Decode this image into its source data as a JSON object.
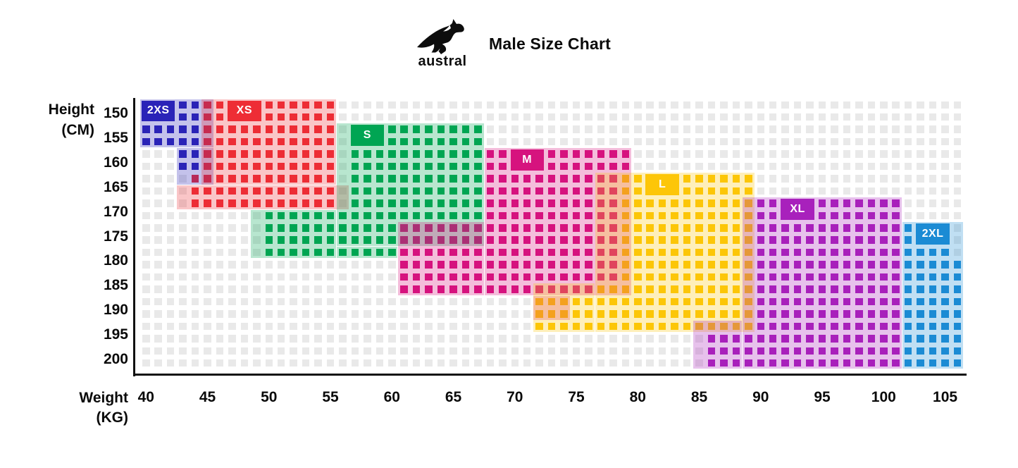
{
  "header": {
    "title": "Male Size Chart",
    "brand": "austral",
    "logo_icon": "kangaroo-icon"
  },
  "y_axis": {
    "title_line1": "Height",
    "title_line2": "(CM)",
    "ticks": [
      "150",
      "155",
      "160",
      "165",
      "170",
      "175",
      "180",
      "185",
      "190",
      "195",
      "200"
    ]
  },
  "x_axis": {
    "title_line1": "Weight",
    "title_line2": "(KG)",
    "ticks": [
      "40",
      "45",
      "50",
      "55",
      "60",
      "65",
      "70",
      "75",
      "80",
      "85",
      "90",
      "95",
      "100",
      "105"
    ]
  },
  "chart_data": {
    "type": "heatmap",
    "title": "Male Size Chart",
    "xlabel": "Weight (KG)",
    "ylabel": "Height (CM)",
    "x_range": [
      40,
      105
    ],
    "x_tick_step": 5,
    "kg_per_column": 1,
    "columns": 67,
    "y_range": [
      150,
      200
    ],
    "y_tick_step": 5,
    "cm_per_row": 2.5,
    "rows": 22,
    "grid_on": true,
    "grid_cell_color": "#e9e9e9",
    "legend_position": "inline-labels",
    "sizes": [
      {
        "label": "2XS",
        "color": "#2a23b8",
        "weight_kg_range": [
          40,
          44
        ],
        "height_cm_range": [
          150,
          162.5
        ],
        "solid_rects": [
          [
            1,
            4,
            1,
            5
          ],
          [
            5,
            6,
            4,
            5
          ]
        ],
        "overlay_rects": [
          [
            1,
            4,
            1,
            6
          ],
          [
            5,
            7,
            4,
            6
          ]
        ],
        "label_box": {
          "row": 1,
          "col": 1
        }
      },
      {
        "label": "XS",
        "color": "#ee2d35",
        "weight_kg_range": [
          44,
          55
        ],
        "height_cm_range": [
          150,
          170
        ],
        "solid_rects": [
          [
            1,
            6,
            6,
            16
          ],
          [
            7,
            9,
            5,
            16
          ]
        ],
        "overlay_rects": [
          [
            1,
            7,
            6,
            16
          ],
          [
            8,
            9,
            4,
            17
          ]
        ],
        "label_box": {
          "row": 1,
          "col": 8
        }
      },
      {
        "label": "S",
        "color": "#00a553",
        "weight_kg_range": [
          50,
          67
        ],
        "height_cm_range": [
          155,
          180
        ],
        "solid_rects": [
          [
            3,
            9,
            18,
            28
          ],
          [
            10,
            10,
            11,
            28
          ],
          [
            11,
            13,
            11,
            21
          ]
        ],
        "overlay_rects": [
          [
            3,
            12,
            17,
            28
          ],
          [
            10,
            13,
            10,
            16
          ],
          [
            13,
            13,
            17,
            21
          ]
        ],
        "label_box": {
          "row": 3,
          "col": 18
        }
      },
      {
        "label": "M",
        "color": "#d6137e",
        "weight_kg_range": [
          61,
          79
        ],
        "height_cm_range": [
          160,
          187.5
        ],
        "solid_rects": [
          [
            5,
            6,
            29,
            40
          ],
          [
            7,
            10,
            29,
            39
          ],
          [
            11,
            15,
            22,
            39
          ],
          [
            16,
            16,
            22,
            37
          ]
        ],
        "overlay_rects": [
          [
            5,
            16,
            29,
            40
          ],
          [
            11,
            16,
            22,
            28
          ],
          [
            17,
            18,
            33,
            35
          ]
        ],
        "label_box": {
          "row": 5,
          "col": 31
        }
      },
      {
        "label": "L",
        "color": "#fdc608",
        "weight_kg_range": [
          72,
          89
        ],
        "height_cm_range": [
          165,
          195
        ],
        "solid_rects": [
          [
            7,
            15,
            40,
            50
          ],
          [
            16,
            16,
            38,
            50
          ],
          [
            17,
            19,
            33,
            50
          ]
        ],
        "overlay_rects": [
          [
            7,
            19,
            38,
            50
          ],
          [
            16,
            19,
            33,
            37
          ]
        ],
        "label_box": {
          "row": 7,
          "col": 42
        }
      },
      {
        "label": "XL",
        "color": "#a821bc",
        "weight_kg_range": [
          86,
          101
        ],
        "height_cm_range": [
          170,
          200
        ],
        "solid_rects": [
          [
            9,
            19,
            51,
            62
          ],
          [
            20,
            22,
            47,
            62
          ]
        ],
        "overlay_rects": [
          [
            9,
            22,
            50,
            62
          ],
          [
            19,
            22,
            46,
            49
          ]
        ],
        "label_box": {
          "row": 9,
          "col": 53
        }
      },
      {
        "label": "2XL",
        "color": "#1b8bd4",
        "weight_kg_range": [
          102,
          105
        ],
        "height_cm_range": [
          175,
          200
        ],
        "solid_rects": [
          [
            11,
            13,
            63,
            66
          ],
          [
            14,
            22,
            63,
            67
          ]
        ],
        "overlay_rects": [
          [
            11,
            22,
            63,
            67
          ]
        ],
        "label_box": {
          "row": 11,
          "col": 64
        }
      }
    ]
  }
}
